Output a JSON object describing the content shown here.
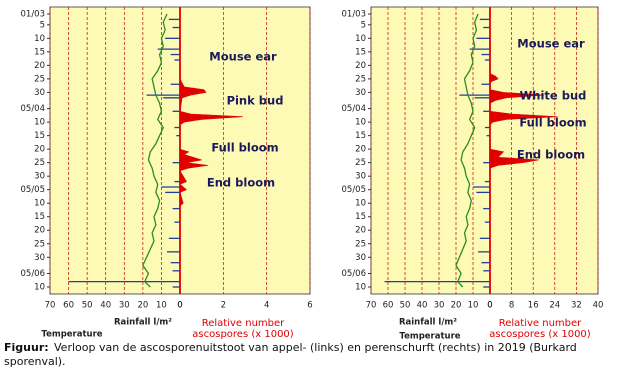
{
  "chart_data": [
    {
      "type": "combo",
      "xlim": [
        70,
        0
      ],
      "xticks": [
        70,
        60,
        50,
        40,
        30,
        20,
        10,
        0
      ],
      "x2lim": [
        0,
        6
      ],
      "x2ticks": [
        0,
        2,
        4,
        6
      ],
      "ylim": [
        "01/03",
        "10/06"
      ],
      "yticks": [
        "01/03",
        {
          "value": "05/03",
          "label": "5"
        },
        {
          "value": "10/03",
          "label": "10"
        },
        {
          "value": "15/03",
          "label": "15"
        },
        {
          "value": "20/03",
          "label": "20"
        },
        {
          "value": "25/03",
          "label": "25"
        },
        {
          "value": "30/03",
          "label": "30"
        },
        "05/04",
        {
          "value": "10/04",
          "label": "10"
        },
        {
          "value": "15/04",
          "label": "15"
        },
        {
          "value": "20/04",
          "label": "20"
        },
        {
          "value": "25/04",
          "label": "25"
        },
        {
          "value": "30/04",
          "label": "30"
        },
        "05/05",
        {
          "value": "10/05",
          "label": "10"
        },
        {
          "value": "15/05",
          "label": "15"
        },
        {
          "value": "20/05",
          "label": "20"
        },
        {
          "value": "25/05",
          "label": "25"
        },
        {
          "value": "30/05",
          "label": "30"
        },
        "05/06",
        {
          "value": "10/06",
          "label": "10"
        }
      ],
      "series": [
        {
          "name": "Rainfall l/m²",
          "type": "bar",
          "color": "#1f3f9f",
          "x": [
            "03/03",
            "06/03",
            "10/03",
            "14/03",
            "16/03",
            "18/03",
            "27/03",
            "31/03",
            "01/04",
            "06/04",
            "12/04",
            "15/04",
            "25/04",
            "02/05",
            "04/05",
            "06/05",
            "12/05",
            "17/05",
            "23/05",
            "28/05",
            "01/06",
            "04/06",
            "08/06",
            "10/06"
          ],
          "values": [
            6,
            4,
            8,
            12,
            5,
            3,
            5,
            18,
            9,
            4,
            3,
            2,
            4,
            3,
            10,
            8,
            4,
            3,
            6,
            7,
            5,
            4,
            60,
            4
          ]
        },
        {
          "name": "Temperature",
          "type": "line",
          "color": "#2e8b22",
          "x": [
            "01/03",
            "04/03",
            "07/03",
            "10/03",
            "13/03",
            "16/03",
            "19/03",
            "22/03",
            "25/03",
            "28/03",
            "31/03",
            "03/04",
            "06/04",
            "09/04",
            "12/04",
            "15/04",
            "18/04",
            "21/04",
            "24/04",
            "27/04",
            "30/04",
            "03/05",
            "06/05",
            "09/05",
            "12/05",
            "15/05",
            "18/05",
            "21/05",
            "24/05",
            "27/05",
            "30/05",
            "02/06",
            "05/06",
            "08/06",
            "10/06"
          ],
          "values": [
            7,
            9,
            8,
            10,
            9,
            11,
            10,
            12,
            15,
            14,
            13,
            11,
            10,
            12,
            9,
            11,
            13,
            16,
            17,
            15,
            14,
            12,
            13,
            11,
            12,
            14,
            13,
            15,
            14,
            16,
            18,
            20,
            17,
            19,
            16
          ]
        },
        {
          "name": "Relative number ascospores (x 1000)",
          "type": "area",
          "axis": "x2",
          "color": "#e00000",
          "x": [
            "01/03",
            "25/03",
            "28/03",
            "29/03",
            "30/03",
            "31/03",
            "01/04",
            "06/04",
            "07/04",
            "08/04",
            "09/04",
            "10/04",
            "11/04",
            "20/04",
            "21/04",
            "22/04",
            "24/04",
            "25/04",
            "26/04",
            "27/04",
            "28/04",
            "02/05",
            "03/05",
            "05/05",
            "06/05",
            "10/05",
            "11/05",
            "10/06"
          ],
          "values": [
            0,
            0,
            0.2,
            1.1,
            1.2,
            0.5,
            0.1,
            0,
            0.5,
            2.9,
            1.0,
            0.2,
            0,
            0,
            0.4,
            0.2,
            1.0,
            0.3,
            1.3,
            0.4,
            0,
            0.3,
            0,
            0.3,
            0,
            0.15,
            0,
            0
          ]
        }
      ],
      "annotations": [
        "Mouse ear",
        "Pink bud",
        "Full bloom",
        "End bloom"
      ]
    },
    {
      "type": "combo",
      "xlim": [
        70,
        0
      ],
      "xticks": [
        70,
        60,
        50,
        40,
        30,
        20,
        10,
        0
      ],
      "x2lim": [
        0,
        40
      ],
      "x2ticks": [
        0,
        8,
        16,
        24,
        32,
        40
      ],
      "ylim": [
        "01/03",
        "10/06"
      ],
      "yticks": [
        "01/03",
        {
          "value": "05/03",
          "label": "5"
        },
        {
          "value": "10/03",
          "label": "10"
        },
        {
          "value": "15/03",
          "label": "15"
        },
        {
          "value": "20/03",
          "label": "20"
        },
        {
          "value": "25/03",
          "label": "25"
        },
        {
          "value": "30/03",
          "label": "30"
        },
        "05/04",
        {
          "value": "10/04",
          "label": "10"
        },
        {
          "value": "15/04",
          "label": "15"
        },
        {
          "value": "20/04",
          "label": "20"
        },
        {
          "value": "25/04",
          "label": "25"
        },
        {
          "value": "30/04",
          "label": "30"
        },
        "05/05",
        {
          "value": "10/05",
          "label": "10"
        },
        {
          "value": "15/05",
          "label": "15"
        },
        {
          "value": "20/05",
          "label": "20"
        },
        {
          "value": "25/05",
          "label": "25"
        },
        {
          "value": "30/05",
          "label": "30"
        },
        "05/06",
        {
          "value": "10/06",
          "label": "10"
        }
      ],
      "series": [
        {
          "name": "Rainfall l/m²",
          "type": "bar",
          "color": "#1f3f9f",
          "x": [
            "03/03",
            "06/03",
            "10/03",
            "14/03",
            "16/03",
            "18/03",
            "27/03",
            "31/03",
            "01/04",
            "06/04",
            "12/04",
            "15/04",
            "25/04",
            "02/05",
            "04/05",
            "06/05",
            "12/05",
            "17/05",
            "23/05",
            "28/05",
            "01/06",
            "04/06",
            "08/06",
            "10/06"
          ],
          "values": [
            6,
            4,
            8,
            12,
            5,
            3,
            5,
            18,
            9,
            4,
            3,
            2,
            4,
            3,
            10,
            8,
            4,
            3,
            6,
            7,
            5,
            4,
            62,
            4
          ]
        },
        {
          "name": "Temperature",
          "type": "line",
          "color": "#2e8b22",
          "x": [
            "01/03",
            "04/03",
            "07/03",
            "10/03",
            "13/03",
            "16/03",
            "19/03",
            "22/03",
            "25/03",
            "28/03",
            "31/03",
            "03/04",
            "06/04",
            "09/04",
            "12/04",
            "15/04",
            "18/04",
            "21/04",
            "24/04",
            "27/04",
            "30/04",
            "03/05",
            "06/05",
            "09/05",
            "12/05",
            "15/05",
            "18/05",
            "21/05",
            "24/05",
            "27/05",
            "30/05",
            "02/06",
            "05/06",
            "08/06",
            "10/06"
          ],
          "values": [
            7,
            9,
            8,
            10,
            9,
            11,
            10,
            12,
            15,
            14,
            13,
            11,
            10,
            12,
            9,
            11,
            13,
            16,
            17,
            15,
            14,
            12,
            13,
            11,
            12,
            14,
            13,
            15,
            14,
            16,
            18,
            20,
            17,
            19,
            16
          ]
        },
        {
          "name": "Relative number ascospores (x 1000)",
          "type": "area",
          "axis": "x2",
          "color": "#e00000",
          "x": [
            "01/03",
            "23/03",
            "24/03",
            "25/03",
            "26/03",
            "27/03",
            "29/03",
            "30/03",
            "31/03",
            "01/04",
            "02/04",
            "03/04",
            "06/04",
            "07/04",
            "08/04",
            "09/04",
            "10/04",
            "11/04",
            "20/04",
            "21/04",
            "23/04",
            "24/04",
            "25/04",
            "26/04",
            "27/04",
            "10/06"
          ],
          "values": [
            0,
            0,
            2,
            3,
            0.5,
            0,
            0,
            5,
            20,
            6,
            2,
            0,
            0,
            8,
            25,
            6,
            1,
            0,
            0,
            5,
            3,
            18,
            12,
            3,
            0,
            0
          ]
        }
      ],
      "annotations": [
        "Mouse ear",
        "White bud",
        "Full bloom",
        "End bloom"
      ]
    }
  ],
  "caption": {
    "label": "Figuur:",
    "text": "Verloop van de ascosporenuitstoot van appel- (links) en perenschurft (rechts) in 2019 (Burkard sporenval)."
  }
}
